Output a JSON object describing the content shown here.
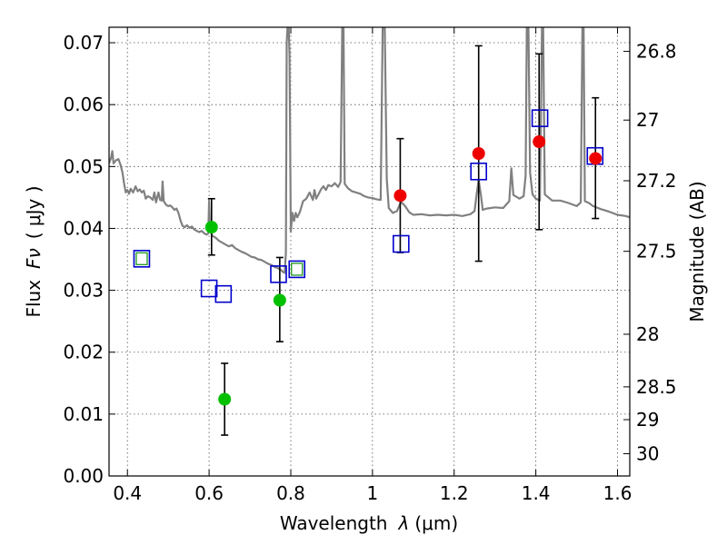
{
  "chart_data": {
    "type": "scatter",
    "xlabel_prefix": "Wavelength",
    "xlabel_symbol": "λ",
    "xlabel_unit": "(μm)",
    "ylabel_prefix": "Flux",
    "ylabel_symbol": "Fν",
    "ylabel_unit": "( μJy )",
    "y2label": "Magnitude (AB)",
    "xlim": [
      0.355,
      1.63
    ],
    "ylim": [
      0.0,
      0.0725
    ],
    "grid": true,
    "x_ticks": [
      {
        "value": 0.4,
        "label": "0.4"
      },
      {
        "value": 0.6,
        "label": "0.6"
      },
      {
        "value": 0.8,
        "label": "0.8"
      },
      {
        "value": 1.0,
        "label": "1"
      },
      {
        "value": 1.2,
        "label": "1.2"
      },
      {
        "value": 1.4,
        "label": "1.4"
      },
      {
        "value": 1.6,
        "label": "1.6"
      }
    ],
    "y_ticks": [
      {
        "value": 0.0,
        "label": "0.00"
      },
      {
        "value": 0.01,
        "label": "0.01"
      },
      {
        "value": 0.02,
        "label": "0.02"
      },
      {
        "value": 0.03,
        "label": "0.03"
      },
      {
        "value": 0.04,
        "label": "0.04"
      },
      {
        "value": 0.05,
        "label": "0.05"
      },
      {
        "value": 0.06,
        "label": "0.06"
      },
      {
        "value": 0.07,
        "label": "0.07"
      }
    ],
    "y2_ticks": [
      {
        "flux": 0.0686,
        "label": "26.8"
      },
      {
        "flux": 0.0575,
        "label": "27"
      },
      {
        "flux": 0.0477,
        "label": "27.2"
      },
      {
        "flux": 0.0363,
        "label": "27.5"
      },
      {
        "flux": 0.0229,
        "label": "28"
      },
      {
        "flux": 0.0144,
        "label": "28.5"
      },
      {
        "flux": 0.0091,
        "label": "29"
      },
      {
        "flux": 0.0036,
        "label": "30"
      }
    ],
    "model_spectrum": {
      "color": "#808080",
      "points": [
        [
          0.355,
          0.0505
        ],
        [
          0.36,
          0.0514
        ],
        [
          0.363,
          0.0525
        ],
        [
          0.366,
          0.0505
        ],
        [
          0.372,
          0.051
        ],
        [
          0.378,
          0.0512
        ],
        [
          0.383,
          0.0503
        ],
        [
          0.388,
          0.049
        ],
        [
          0.392,
          0.0472
        ],
        [
          0.396,
          0.0458
        ],
        [
          0.4,
          0.0462
        ],
        [
          0.404,
          0.0456
        ],
        [
          0.408,
          0.0464
        ],
        [
          0.414,
          0.0458
        ],
        [
          0.42,
          0.0468
        ],
        [
          0.425,
          0.046
        ],
        [
          0.43,
          0.0463
        ],
        [
          0.435,
          0.0458
        ],
        [
          0.44,
          0.0461
        ],
        [
          0.445,
          0.0448
        ],
        [
          0.45,
          0.0452
        ],
        [
          0.456,
          0.045
        ],
        [
          0.462,
          0.0446
        ],
        [
          0.466,
          0.0458
        ],
        [
          0.47,
          0.0442
        ],
        [
          0.476,
          0.0458
        ],
        [
          0.48,
          0.0446
        ],
        [
          0.484,
          0.0445
        ],
        [
          0.486,
          0.0476
        ],
        [
          0.489,
          0.0444
        ],
        [
          0.495,
          0.0438
        ],
        [
          0.5,
          0.0436
        ],
        [
          0.505,
          0.0437
        ],
        [
          0.51,
          0.0434
        ],
        [
          0.515,
          0.043
        ],
        [
          0.52,
          0.0432
        ],
        [
          0.525,
          0.0425
        ],
        [
          0.53,
          0.0413
        ],
        [
          0.535,
          0.0404
        ],
        [
          0.54,
          0.0402
        ],
        [
          0.546,
          0.0405
        ],
        [
          0.552,
          0.0401
        ],
        [
          0.558,
          0.0403
        ],
        [
          0.564,
          0.0398
        ],
        [
          0.57,
          0.0396
        ],
        [
          0.576,
          0.0394
        ],
        [
          0.582,
          0.0396
        ],
        [
          0.588,
          0.0392
        ],
        [
          0.594,
          0.039
        ],
        [
          0.598,
          0.0392
        ],
        [
          0.6,
          0.0445
        ],
        [
          0.602,
          0.0398
        ],
        [
          0.608,
          0.0388
        ],
        [
          0.616,
          0.0385
        ],
        [
          0.624,
          0.038
        ],
        [
          0.632,
          0.0377
        ],
        [
          0.64,
          0.0374
        ],
        [
          0.648,
          0.0371
        ],
        [
          0.656,
          0.0373
        ],
        [
          0.664,
          0.0368
        ],
        [
          0.672,
          0.0365
        ],
        [
          0.68,
          0.0362
        ],
        [
          0.688,
          0.036
        ],
        [
          0.696,
          0.0357
        ],
        [
          0.704,
          0.0354
        ],
        [
          0.712,
          0.0353
        ],
        [
          0.72,
          0.035
        ],
        [
          0.728,
          0.0349
        ],
        [
          0.736,
          0.0346
        ],
        [
          0.744,
          0.0343
        ],
        [
          0.752,
          0.0341
        ],
        [
          0.76,
          0.0338
        ],
        [
          0.768,
          0.0336
        ],
        [
          0.776,
          0.0333
        ],
        [
          0.78,
          0.033
        ],
        [
          0.785,
          0.0328
        ],
        [
          0.788,
          0.036
        ],
        [
          0.79,
          0.07
        ],
        [
          0.792,
          0.0725
        ],
        [
          0.795,
          0.0725
        ],
        [
          0.797,
          0.068
        ],
        [
          0.8,
          0.0395
        ],
        [
          0.804,
          0.0425
        ],
        [
          0.808,
          0.0412
        ],
        [
          0.812,
          0.0425
        ],
        [
          0.816,
          0.0418
        ],
        [
          0.822,
          0.0426
        ],
        [
          0.83,
          0.0444
        ],
        [
          0.838,
          0.0448
        ],
        [
          0.846,
          0.0458
        ],
        [
          0.854,
          0.0446
        ],
        [
          0.858,
          0.0462
        ],
        [
          0.862,
          0.0448
        ],
        [
          0.868,
          0.0455
        ],
        [
          0.874,
          0.0463
        ],
        [
          0.88,
          0.0468
        ],
        [
          0.886,
          0.0462
        ],
        [
          0.892,
          0.047
        ],
        [
          0.9,
          0.0468
        ],
        [
          0.908,
          0.0473
        ],
        [
          0.916,
          0.0467
        ],
        [
          0.922,
          0.0475
        ],
        [
          0.926,
          0.0725
        ],
        [
          0.929,
          0.0725
        ],
        [
          0.932,
          0.0472
        ],
        [
          0.94,
          0.0465
        ],
        [
          0.95,
          0.046
        ],
        [
          0.96,
          0.0458
        ],
        [
          0.97,
          0.0456
        ],
        [
          0.98,
          0.0452
        ],
        [
          0.99,
          0.045
        ],
        [
          1.0,
          0.0449
        ],
        [
          1.01,
          0.0447
        ],
        [
          1.02,
          0.0446
        ],
        [
          1.025,
          0.0725
        ],
        [
          1.03,
          0.0725
        ],
        [
          1.035,
          0.048
        ],
        [
          1.04,
          0.0433
        ],
        [
          1.05,
          0.0425
        ],
        [
          1.06,
          0.0428
        ],
        [
          1.07,
          0.0443
        ],
        [
          1.08,
          0.0436
        ],
        [
          1.09,
          0.0426
        ],
        [
          1.1,
          0.0422
        ],
        [
          1.12,
          0.0423
        ],
        [
          1.14,
          0.0421
        ],
        [
          1.16,
          0.0422
        ],
        [
          1.18,
          0.0421
        ],
        [
          1.2,
          0.0422
        ],
        [
          1.22,
          0.042
        ],
        [
          1.24,
          0.0423
        ],
        [
          1.25,
          0.0428
        ],
        [
          1.255,
          0.0455
        ],
        [
          1.26,
          0.0478
        ],
        [
          1.265,
          0.0456
        ],
        [
          1.27,
          0.043
        ],
        [
          1.28,
          0.0432
        ],
        [
          1.3,
          0.0434
        ],
        [
          1.32,
          0.0433
        ],
        [
          1.335,
          0.0444
        ],
        [
          1.34,
          0.0497
        ],
        [
          1.345,
          0.0454
        ],
        [
          1.36,
          0.0448
        ],
        [
          1.37,
          0.0452
        ],
        [
          1.375,
          0.0485
        ],
        [
          1.378,
          0.0725
        ],
        [
          1.382,
          0.0725
        ],
        [
          1.386,
          0.049
        ],
        [
          1.392,
          0.0455
        ],
        [
          1.4,
          0.0448
        ],
        [
          1.41,
          0.0445
        ],
        [
          1.415,
          0.0725
        ],
        [
          1.418,
          0.0725
        ],
        [
          1.422,
          0.0455
        ],
        [
          1.44,
          0.0445
        ],
        [
          1.46,
          0.0445
        ],
        [
          1.48,
          0.0441
        ],
        [
          1.5,
          0.0436
        ],
        [
          1.51,
          0.0442
        ],
        [
          1.514,
          0.0725
        ],
        [
          1.517,
          0.0725
        ],
        [
          1.52,
          0.0444
        ],
        [
          1.53,
          0.0441
        ],
        [
          1.54,
          0.0436
        ],
        [
          1.56,
          0.0431
        ],
        [
          1.58,
          0.0427
        ],
        [
          1.6,
          0.0422
        ],
        [
          1.62,
          0.042
        ],
        [
          1.63,
          0.0418
        ]
      ]
    },
    "model_points": {
      "marker": "open-square",
      "color": "#0000cc",
      "points": [
        {
          "x": 0.435,
          "y": 0.0351
        },
        {
          "x": 0.6,
          "y": 0.0303
        },
        {
          "x": 0.635,
          "y": 0.0294
        },
        {
          "x": 0.77,
          "y": 0.0326
        },
        {
          "x": 0.815,
          "y": 0.0334
        },
        {
          "x": 1.07,
          "y": 0.0375
        },
        {
          "x": 1.26,
          "y": 0.0492
        },
        {
          "x": 1.41,
          "y": 0.0578
        },
        {
          "x": 1.545,
          "y": 0.0517
        }
      ]
    },
    "inner_squares": {
      "marker": "open-square-small",
      "color": "#2ca02c",
      "points": [
        {
          "x": 0.435,
          "y": 0.0351
        },
        {
          "x": 0.815,
          "y": 0.0334
        }
      ]
    },
    "observed_optical": {
      "marker": "filled-circle",
      "color": "#00c000",
      "points": [
        {
          "x": 0.606,
          "y": 0.0402,
          "ylo": 0.0357,
          "yhi": 0.0448
        },
        {
          "x": 0.638,
          "y": 0.0124,
          "ylo": 0.0066,
          "yhi": 0.0182
        },
        {
          "x": 0.773,
          "y": 0.0284,
          "ylo": 0.0217,
          "yhi": 0.0353
        }
      ]
    },
    "observed_nir": {
      "marker": "filled-circle",
      "color": "#ee0000",
      "points": [
        {
          "x": 1.068,
          "y": 0.0453,
          "ylo": 0.0361,
          "yhi": 0.0545
        },
        {
          "x": 1.26,
          "y": 0.0521,
          "ylo": 0.0347,
          "yhi": 0.0695
        },
        {
          "x": 1.408,
          "y": 0.054,
          "ylo": 0.0398,
          "yhi": 0.0682
        },
        {
          "x": 1.546,
          "y": 0.0513,
          "ylo": 0.0416,
          "yhi": 0.0611
        }
      ]
    }
  }
}
